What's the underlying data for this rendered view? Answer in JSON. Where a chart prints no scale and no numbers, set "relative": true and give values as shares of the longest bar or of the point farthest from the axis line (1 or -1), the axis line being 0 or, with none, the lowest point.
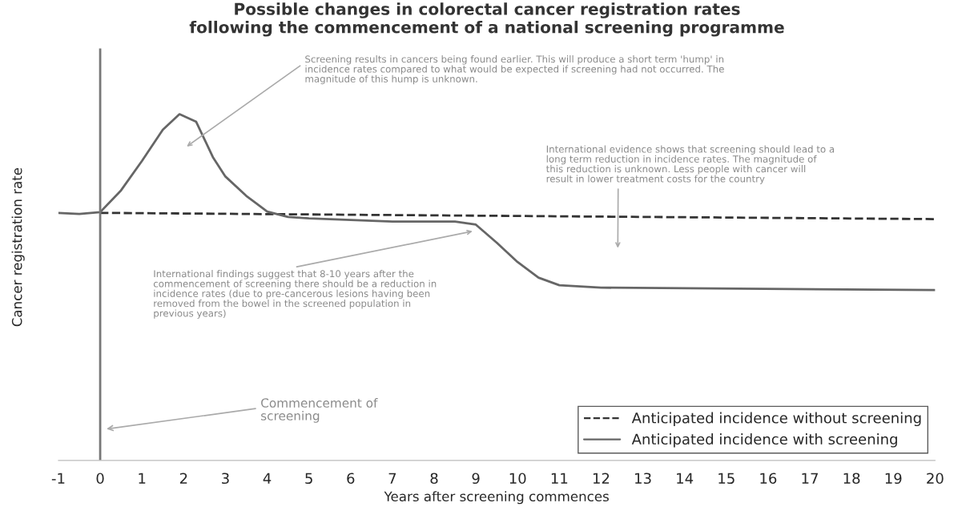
{
  "chart_data": {
    "type": "line",
    "title": "Possible changes in colorectal cancer registration rates\nfollowing the commencement of a national screening programme",
    "xlabel": "Years after screening commences",
    "ylabel": "Cancer registration rate",
    "relative": true,
    "xlim": [
      -1,
      20
    ],
    "xticks": [
      -1,
      0,
      1,
      2,
      3,
      4,
      5,
      6,
      7,
      8,
      9,
      10,
      11,
      12,
      13,
      14,
      15,
      16,
      17,
      18,
      19,
      20
    ],
    "grid": false,
    "legend": "bottom right",
    "marker": "none",
    "series": [
      {
        "name": "Anticipated incidence without screening",
        "color": "#333333",
        "line_style": "dashed",
        "x": [
          0,
          20
        ],
        "values": [
          0.715,
          0.697
        ]
      },
      {
        "name": "Anticipated incidence with screening",
        "color": "#666666",
        "line_style": "solid",
        "x": [
          -1,
          -0.5,
          0,
          0.5,
          1,
          1.5,
          1.9,
          2.3,
          2.7,
          3,
          3.5,
          4,
          4.5,
          5,
          7,
          8.5,
          9,
          9.5,
          10,
          10.5,
          11,
          12,
          20
        ],
        "values": [
          0.715,
          0.712,
          0.717,
          0.78,
          0.865,
          0.955,
          1.0,
          0.978,
          0.876,
          0.82,
          0.764,
          0.719,
          0.703,
          0.699,
          0.69,
          0.69,
          0.681,
          0.629,
          0.573,
          0.528,
          0.506,
          0.499,
          0.492
        ]
      }
    ],
    "ref_lines": [
      {
        "axis": "x",
        "value": 0,
        "color": "#777777",
        "line_style": "solid"
      }
    ],
    "annotations": [
      "Screening results in cancers being found earlier. This will produce a short term 'hump' in\nincidence rates compared to what would be expected if screening had not occurred. The\nmagnitude of this hump is unknown.",
      "International evidence shows that screening should lead to a\nlong term reduction in incidence rates. The magnitude of\nthis reduction is unknown. Less people with cancer will\nresult in lower treatment costs for the country",
      "International findings suggest that 8-10 years after the\ncommencement of screening there should be a reduction in\nincidence rates (due to pre-cancerous lesions having been\nremoved from the bowel in the screened population in\nprevious years)",
      "Commencement of\nscreening"
    ]
  }
}
